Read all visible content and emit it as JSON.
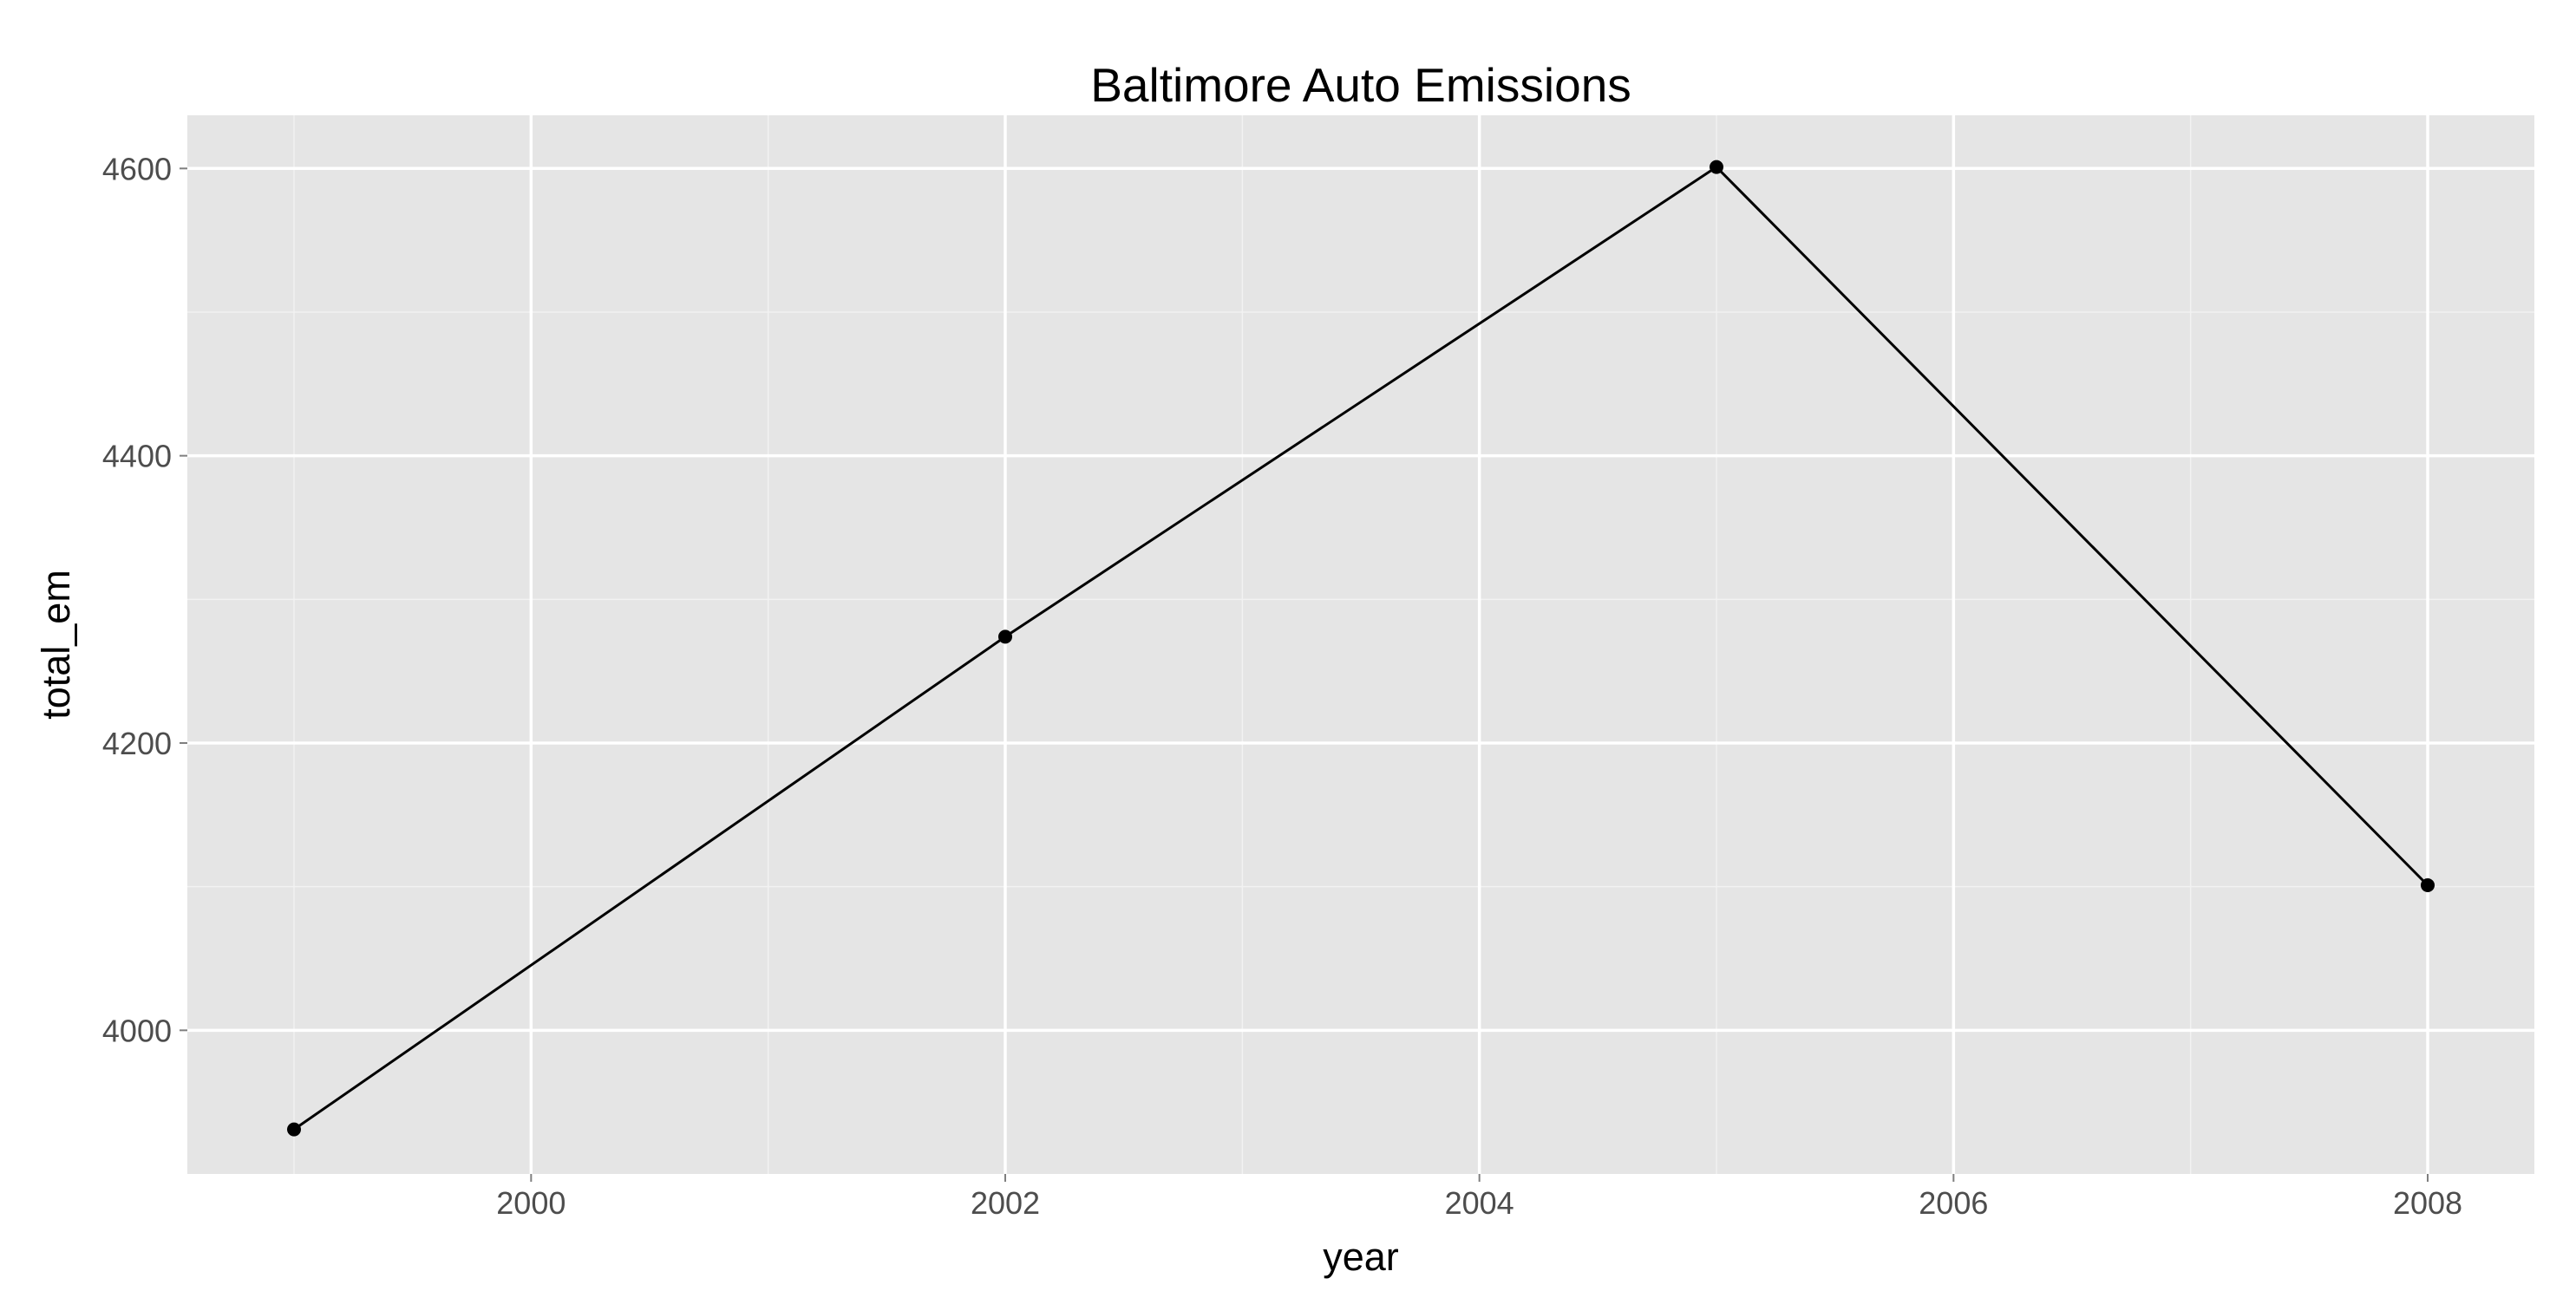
{
  "chart_data": {
    "type": "line",
    "title": "Baltimore Auto Emissions",
    "xlabel": "year",
    "ylabel": "total_em",
    "x": [
      1999,
      2002,
      2005,
      2008
    ],
    "series": [
      {
        "values": [
          3931,
          4274,
          4601,
          4101
        ]
      }
    ],
    "xlim": [
      1998.55,
      2008.45
    ],
    "ylim": [
      3900,
      4637
    ],
    "x_ticks": [
      2000,
      2002,
      2004,
      2006,
      2008
    ],
    "x_tick_labels": [
      "2000",
      "2002",
      "2004",
      "2006",
      "2008"
    ],
    "x_minor_ticks": [
      1999,
      2001,
      2003,
      2005,
      2007
    ],
    "y_ticks": [
      4000,
      4200,
      4400,
      4600
    ],
    "y_tick_labels": [
      "4000",
      "4200",
      "4400",
      "4600"
    ],
    "y_minor_ticks": [
      4100,
      4300,
      4500
    ],
    "grid": true,
    "legend": "none",
    "colors": {
      "panel_background": "#e5e5e5",
      "major_grid": "#ffffff",
      "minor_grid": "#f2f2f2",
      "line": "#000000",
      "point": "#000000",
      "tick_label": "#4d4d4d"
    }
  }
}
